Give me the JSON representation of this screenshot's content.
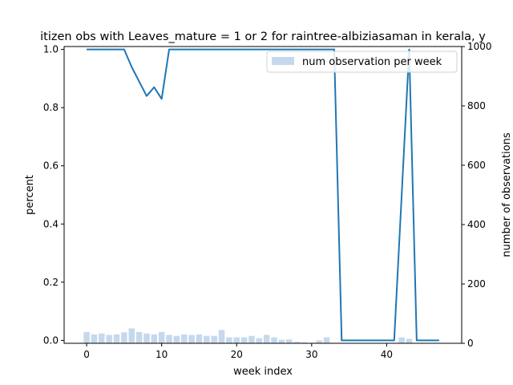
{
  "chart_data": {
    "type": "bar+line",
    "title": "itizen obs with Leaves_mature = 1 or 2 for raintree-albiziasaman in kerala, y",
    "xlabel": "week index",
    "ylabel_left": "percent",
    "ylabel_right": "number of observations",
    "xlim": [
      -3,
      50
    ],
    "ylim_left": [
      -0.01,
      1.01
    ],
    "ylim_right": [
      0,
      1000
    ],
    "x_ticks": [
      0,
      10,
      20,
      30,
      40
    ],
    "y_left_ticks": [
      "0.0",
      "0.2",
      "0.4",
      "0.6",
      "0.8",
      "1.0"
    ],
    "y_right_ticks": [
      "0",
      "200",
      "400",
      "600",
      "800",
      "1000"
    ],
    "legend": {
      "label": "num observation per week",
      "placement": "top-right"
    },
    "colors": {
      "line": "#1f77b4",
      "bars": "#c6d9ec"
    },
    "weeks": [
      0,
      1,
      2,
      3,
      4,
      5,
      6,
      7,
      8,
      9,
      10,
      11,
      12,
      13,
      14,
      15,
      16,
      17,
      18,
      19,
      20,
      21,
      22,
      23,
      24,
      25,
      26,
      27,
      28,
      29,
      30,
      31,
      32,
      33,
      34,
      35,
      36,
      37,
      38,
      39,
      40,
      41,
      42,
      43,
      44,
      45,
      46,
      47
    ],
    "percent": [
      1.0,
      1.0,
      1.0,
      1.0,
      1.0,
      1.0,
      0.94,
      0.89,
      0.84,
      0.87,
      0.83,
      1.0,
      1.0,
      1.0,
      1.0,
      1.0,
      1.0,
      1.0,
      1.0,
      1.0,
      1.0,
      1.0,
      1.0,
      1.0,
      1.0,
      1.0,
      1.0,
      1.0,
      1.0,
      1.0,
      1.0,
      1.0,
      1.0,
      1.0,
      0.0,
      0.0,
      0.0,
      0.0,
      0.0,
      0.0,
      0.0,
      0.0,
      0.5,
      1.0,
      0.0,
      0.0,
      0.0,
      0.0
    ],
    "observations": [
      38,
      30,
      33,
      28,
      30,
      37,
      50,
      38,
      33,
      30,
      38,
      28,
      25,
      30,
      28,
      30,
      25,
      25,
      45,
      20,
      20,
      20,
      25,
      17,
      28,
      20,
      12,
      13,
      5,
      3,
      0,
      10,
      20,
      0,
      0,
      0,
      0,
      0,
      0,
      0,
      0,
      0,
      20,
      15,
      0,
      0,
      0,
      0
    ]
  }
}
